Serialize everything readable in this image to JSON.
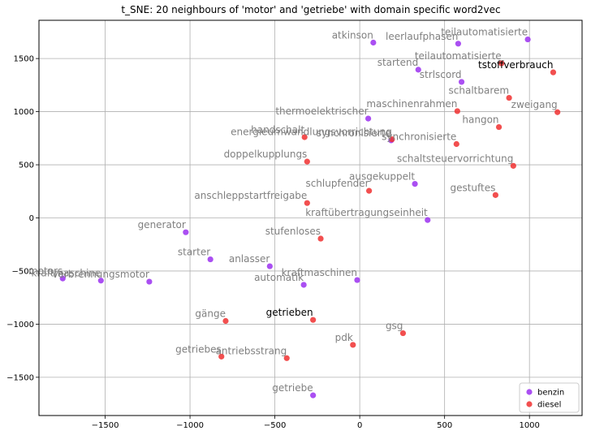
{
  "chart_data": {
    "type": "scatter",
    "title": "t_SNE: 20 neighbours of 'motor' and 'getriebe' with domain specific word2vec",
    "xlim": [
      -1890,
      1310
    ],
    "ylim": [
      -1860,
      1860
    ],
    "xticks": [
      -1500,
      -1000,
      -500,
      0,
      500,
      1000
    ],
    "yticks": [
      -1500,
      -1000,
      -500,
      0,
      500,
      1000,
      1500
    ],
    "grid": true,
    "legend_position": "lower-right",
    "colors": {
      "benzin": "#9b30f0",
      "diesel": "#f03030"
    },
    "series": [
      {
        "name": "benzin",
        "points": [
          {
            "x": 80,
            "y": 1650,
            "label": "atkinson"
          },
          {
            "x": 580,
            "y": 1640,
            "label": "leerlaufphasen"
          },
          {
            "x": 990,
            "y": 1680,
            "label": "teilautomatisierte"
          },
          {
            "x": 345,
            "y": 1395,
            "label": "startend"
          },
          {
            "x": 600,
            "y": 1280,
            "label": "strlscord"
          },
          {
            "x": 50,
            "y": 935,
            "label": "thermoelektrischer"
          },
          {
            "x": 185,
            "y": 730,
            "label": "synchronisierte"
          },
          {
            "x": 325,
            "y": 320,
            "label": "ausgekuppelt"
          },
          {
            "x": 400,
            "y": -20,
            "label": "kraftübertragungseinheit"
          },
          {
            "x": -1025,
            "y": -135,
            "label": "generator"
          },
          {
            "x": -880,
            "y": -390,
            "label": "starter"
          },
          {
            "x": -530,
            "y": -455,
            "label": "anlasser"
          },
          {
            "x": -1750,
            "y": -570,
            "label": "motors"
          },
          {
            "x": -1525,
            "y": -590,
            "label": "kraftmaschine"
          },
          {
            "x": -1240,
            "y": -600,
            "label": "verbrennungsmotor"
          },
          {
            "x": -330,
            "y": -630,
            "label": "automatik"
          },
          {
            "x": -15,
            "y": -585,
            "label": "kraftmaschinen"
          },
          {
            "x": -275,
            "y": -1670,
            "label": "getriebe"
          }
        ]
      },
      {
        "name": "diesel",
        "points": [
          {
            "x": 835,
            "y": 1455,
            "label": "teilautomatisierte"
          },
          {
            "x": 1140,
            "y": 1370,
            "label": "tstoffverbrauch"
          },
          {
            "x": 880,
            "y": 1130,
            "label": "schaltbarem"
          },
          {
            "x": 575,
            "y": 1005,
            "label": "maschinenrahmen"
          },
          {
            "x": 1165,
            "y": 995,
            "label": "zweigang"
          },
          {
            "x": 820,
            "y": 855,
            "label": "hangon"
          },
          {
            "x": -325,
            "y": 760,
            "label": "handschalt"
          },
          {
            "x": 190,
            "y": 740,
            "label": "energieumwandlungsvorrichtung"
          },
          {
            "x": 570,
            "y": 695,
            "label": "synchronisierte"
          },
          {
            "x": -310,
            "y": 530,
            "label": "doppelkupplungs"
          },
          {
            "x": 905,
            "y": 490,
            "label": "schaltsteuervorrichtung"
          },
          {
            "x": 55,
            "y": 255,
            "label": "schlupfender"
          },
          {
            "x": 800,
            "y": 215,
            "label": "gestuftes"
          },
          {
            "x": -310,
            "y": 140,
            "label": "anschleppstartfreigabe"
          },
          {
            "x": -230,
            "y": -195,
            "label": "stufenloses"
          },
          {
            "x": -790,
            "y": -970,
            "label": "gänge"
          },
          {
            "x": -275,
            "y": -960,
            "label": "getrieben"
          },
          {
            "x": 255,
            "y": -1085,
            "label": "gsg"
          },
          {
            "x": -40,
            "y": -1195,
            "label": "pdk"
          },
          {
            "x": -815,
            "y": -1305,
            "label": "getriebes"
          },
          {
            "x": -430,
            "y": -1320,
            "label": "antriebsstrang"
          }
        ]
      }
    ]
  }
}
